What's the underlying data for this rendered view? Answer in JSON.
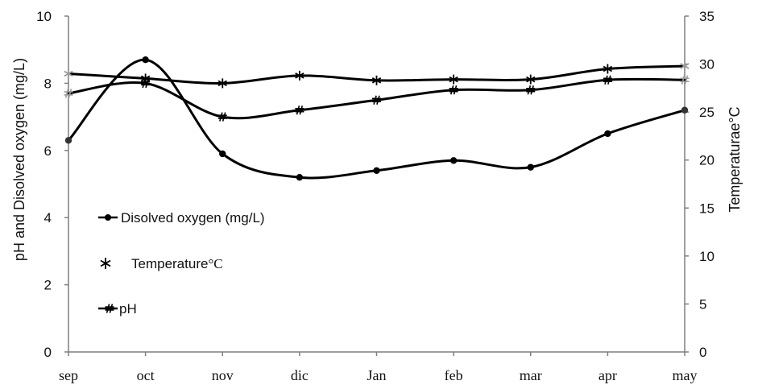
{
  "chart_data": {
    "type": "line",
    "categories": [
      "sep",
      "oct",
      "nov",
      "dic",
      "Jan",
      "feb",
      "mar",
      "apr",
      "may"
    ],
    "y_left": {
      "label": "pH and Disolved oxygen  (mg/L)",
      "ticks": [
        "0",
        "2",
        "4",
        "6",
        "8",
        "10"
      ],
      "range": [
        0,
        10
      ]
    },
    "y_right": {
      "label": "Temperaturae°C",
      "ticks": [
        "0",
        "5",
        "10",
        "15",
        "20",
        "25",
        "30",
        "35"
      ],
      "range": [
        0,
        35
      ]
    },
    "grid": false,
    "legend_position": "left-middle",
    "series": [
      {
        "name": "Disolved oxygen  (mg/L)",
        "axis": "left",
        "marker": "circle",
        "values": [
          6.3,
          8.7,
          5.9,
          5.2,
          5.4,
          5.7,
          5.5,
          6.5,
          7.2
        ]
      },
      {
        "name": "Temperature",
        "legend_unit": "°C",
        "axis": "right",
        "marker": "star",
        "values": [
          29.0,
          28.5,
          28.0,
          28.8,
          28.3,
          28.4,
          28.4,
          29.5,
          29.8
        ]
      },
      {
        "name": "pH",
        "axis": "left",
        "marker": "hash",
        "values": [
          7.7,
          8.0,
          7.0,
          7.2,
          7.5,
          7.8,
          7.8,
          8.1,
          8.1
        ]
      }
    ]
  }
}
